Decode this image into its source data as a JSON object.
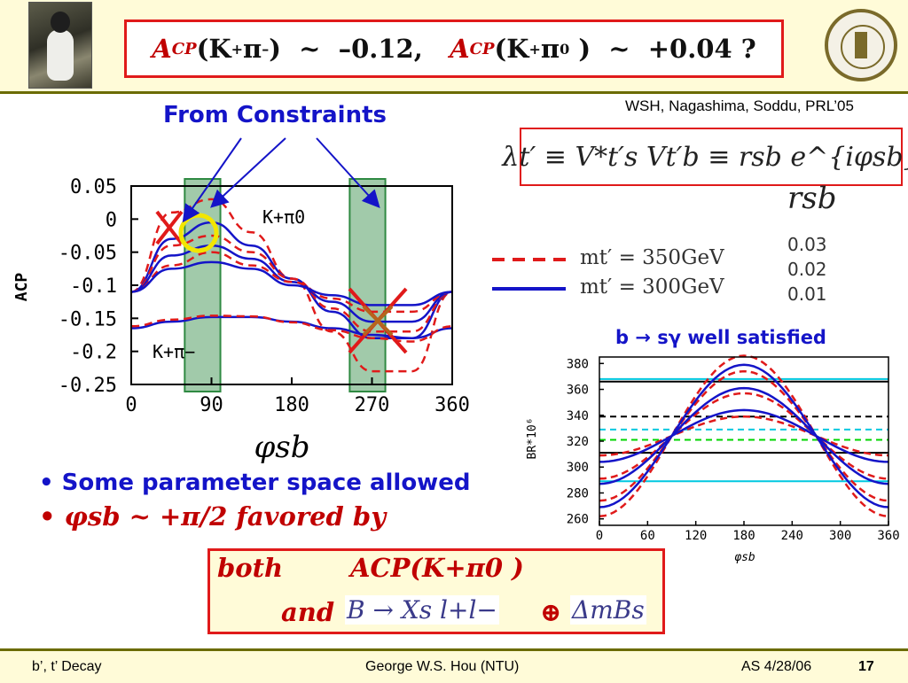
{
  "slide": {
    "title_parts": [
      "A",
      "CP",
      "(K",
      "+",
      "π",
      "–",
      ")  ~  –0.12,   ",
      "A",
      "CP",
      "(K",
      "+",
      "π",
      "0",
      " )  ~  +0.04 ?"
    ],
    "reference": "WSH, Nagashima, Soddu, PRL’05",
    "from_constraints": "From Constraints",
    "lambda_formula": "λt′ ≡ V*t′s Vt′b ≡ rsb e^{iφsb}",
    "rsb_label": "rsb",
    "rsb_values": [
      "0.03",
      "0.02",
      "0.01"
    ],
    "mass_legend": [
      {
        "label": "mt′ = 350GeV",
        "color": "#e01a1a",
        "dash": true
      },
      {
        "label": "mt′ = 300GeV",
        "color": "#1414c8",
        "dash": false
      }
    ],
    "bsg_label": "b → sγ well satisfied",
    "bullet1": "Some parameter space allowed",
    "bullet2": "φsb ~ +π/2 favored by",
    "both": "both",
    "and": "and",
    "both_acp": "ACP(K+π0 )",
    "b_decay": "B → Xs l+l−",
    "oplus": "⊕",
    "delta_m": "ΔmBs"
  },
  "footer": {
    "left": "b’, t’ Decay",
    "center": "George W.S. Hou (NTU)",
    "right": "AS 4/28/06",
    "page": "17"
  },
  "colors": {
    "red": "#e01a1a",
    "blue": "#1414c8",
    "band": "#2f8a42"
  },
  "chart_data": [
    {
      "type": "line",
      "xlabel": "φsb",
      "ylabel": "ACP",
      "xlim": [
        0,
        360
      ],
      "ylim": [
        -0.25,
        0.05
      ],
      "xticks": [
        "0",
        "90",
        "180",
        "270",
        "360"
      ],
      "yticks": [
        "0.05",
        "0",
        "-0.05",
        "-0.1",
        "-0.15",
        "-0.2",
        "-0.25"
      ],
      "labels": [
        "K+π0",
        "K+π−"
      ],
      "bands": [
        [
          60,
          100
        ],
        [
          245,
          285
        ]
      ],
      "series": [
        {
          "group": "K+π0",
          "mass": "350GeV",
          "rsb": "0.03",
          "x": [
            0,
            45,
            90,
            135,
            180,
            225,
            270,
            315,
            360
          ],
          "y": [
            -0.11,
            0.01,
            0.03,
            -0.02,
            -0.09,
            -0.17,
            -0.23,
            -0.23,
            -0.11
          ]
        },
        {
          "group": "K+π0",
          "mass": "300GeV",
          "rsb": "0.03",
          "x": [
            0,
            45,
            90,
            135,
            180,
            225,
            270,
            315,
            360
          ],
          "y": [
            -0.11,
            -0.03,
            -0.005,
            -0.04,
            -0.09,
            -0.14,
            -0.18,
            -0.18,
            -0.11
          ]
        },
        {
          "group": "K+π0",
          "mass": "350GeV",
          "rsb": "0.02",
          "x": [
            0,
            45,
            90,
            135,
            180,
            225,
            270,
            315,
            360
          ],
          "y": [
            -0.11,
            -0.04,
            -0.025,
            -0.05,
            -0.09,
            -0.135,
            -0.17,
            -0.17,
            -0.11
          ]
        },
        {
          "group": "K+π0",
          "mass": "300GeV",
          "rsb": "0.02",
          "x": [
            0,
            45,
            90,
            135,
            180,
            225,
            270,
            315,
            360
          ],
          "y": [
            -0.11,
            -0.055,
            -0.04,
            -0.06,
            -0.095,
            -0.125,
            -0.155,
            -0.155,
            -0.11
          ]
        },
        {
          "group": "K+π0",
          "mass": "350GeV",
          "rsb": "0.01",
          "x": [
            0,
            45,
            90,
            135,
            180,
            225,
            270,
            315,
            360
          ],
          "y": [
            -0.11,
            -0.07,
            -0.05,
            -0.07,
            -0.095,
            -0.12,
            -0.14,
            -0.14,
            -0.11
          ]
        },
        {
          "group": "K+π0",
          "mass": "300GeV",
          "rsb": "0.01",
          "x": [
            0,
            45,
            90,
            135,
            180,
            225,
            270,
            315,
            360
          ],
          "y": [
            -0.11,
            -0.075,
            -0.065,
            -0.075,
            -0.1,
            -0.115,
            -0.13,
            -0.13,
            -0.11
          ]
        },
        {
          "group": "K+π−",
          "mass": "300GeV",
          "rsb": "0.03",
          "x": [
            0,
            45,
            90,
            135,
            180,
            225,
            270,
            315,
            360
          ],
          "y": [
            -0.165,
            -0.155,
            -0.148,
            -0.148,
            -0.155,
            -0.165,
            -0.175,
            -0.18,
            -0.165
          ]
        },
        {
          "group": "K+π−",
          "mass": "350GeV",
          "rsb": "0.03",
          "x": [
            0,
            45,
            90,
            135,
            180,
            225,
            270,
            315,
            360
          ],
          "y": [
            -0.162,
            -0.152,
            -0.146,
            -0.147,
            -0.156,
            -0.168,
            -0.18,
            -0.185,
            -0.162
          ]
        }
      ]
    },
    {
      "type": "line",
      "xlabel": "φsb",
      "ylabel": "BR*10⁶",
      "xlim": [
        0,
        360
      ],
      "ylim": [
        255,
        385
      ],
      "xticks": [
        "0",
        "60",
        "120",
        "180",
        "240",
        "300",
        "360"
      ],
      "yticks": [
        "380",
        "360",
        "340",
        "320",
        "300",
        "280",
        "260"
      ],
      "bounds": [
        {
          "y": 368,
          "color": "#00c8e0",
          "dash": false
        },
        {
          "y": 366,
          "color": "#000000",
          "dash": false
        },
        {
          "y": 339,
          "color": "#000000",
          "dash": true
        },
        {
          "y": 329,
          "color": "#00c8e0",
          "dash": true
        },
        {
          "y": 321,
          "color": "#00d400",
          "dash": true
        },
        {
          "y": 311,
          "color": "#000000",
          "dash": false
        },
        {
          "y": 289,
          "color": "#00c8e0",
          "dash": false
        }
      ],
      "series": [
        {
          "mass": "350GeV",
          "amplitude": 62,
          "color": "#e01a1a",
          "dash": true
        },
        {
          "mass": "350GeV",
          "amplitude": 50,
          "color": "#e01a1a",
          "dash": true
        },
        {
          "mass": "350GeV",
          "amplitude": 33,
          "color": "#e01a1a",
          "dash": true
        },
        {
          "mass": "350GeV",
          "amplitude": 15,
          "color": "#e01a1a",
          "dash": true
        },
        {
          "mass": "300GeV",
          "amplitude": 55,
          "color": "#1414c8",
          "dash": false
        },
        {
          "mass": "300GeV",
          "amplitude": 37,
          "color": "#1414c8",
          "dash": false
        },
        {
          "mass": "300GeV",
          "amplitude": 20,
          "color": "#1414c8",
          "dash": false
        }
      ],
      "center": 324
    }
  ]
}
